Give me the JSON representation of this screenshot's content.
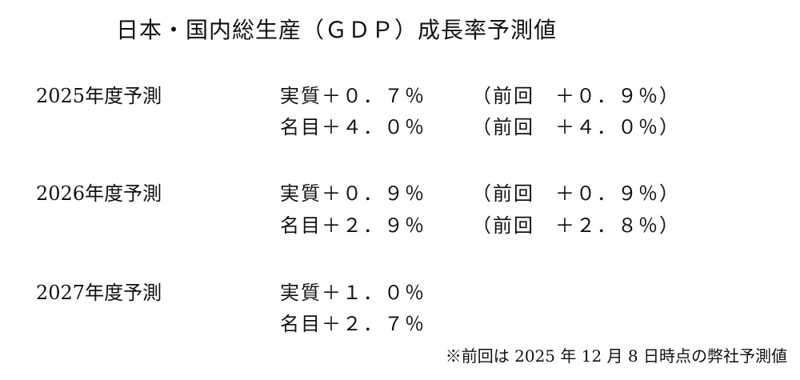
{
  "title": "日本・国内総生産（ＧＤＰ）成長率予測値",
  "forecasts": [
    {
      "label": "2025年度予測",
      "real": "実質＋０．７％",
      "real_prev": "（前回　＋０．９％）",
      "nominal": "名目＋４．０％",
      "nominal_prev": "（前回　＋４．０％）"
    },
    {
      "label": "2026年度予測",
      "real": "実質＋０．９％",
      "real_prev": "（前回　＋０．９％）",
      "nominal": "名目＋２．９％",
      "nominal_prev": "（前回　＋２．８％）"
    },
    {
      "label": "2027年度予測",
      "real": "実質＋１．０％",
      "nominal": "名目＋２．７％"
    }
  ],
  "footnote": "※前回は 2025 年 12 月 8 日時点の弊社予測値"
}
